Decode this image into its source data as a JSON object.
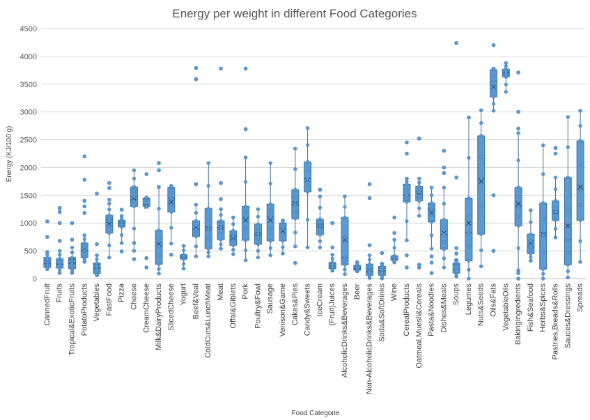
{
  "chart_data": {
    "type": "box",
    "title": "Energy per weight in different Food Categories",
    "xlabel": "Food Categorie",
    "ylabel": "Energy (KJ/100 g)",
    "ylim": [
      0,
      4500
    ],
    "yticks": [
      0,
      500,
      1000,
      1500,
      2000,
      2500,
      3000,
      3500,
      4000,
      4500
    ],
    "grid": true,
    "color": "#5B9BD5",
    "stroke": "#41719C",
    "categories": [
      "CannedFruit",
      "Fruits",
      "Tropical&ExoticFruits",
      "PotatoProducts",
      "Vegetables",
      "FastFood",
      "Pizza",
      "Cheese",
      "CreamCheese",
      "Milk&DairyProducts",
      "SlicedCheese",
      "Yogurt",
      "Beef&Veal",
      "ColdCuts&LunchMeat",
      "Meat",
      "Offal&Giblets",
      "Pork",
      "Poultry&Fowl",
      "Sausage",
      "Venison&Game",
      "Cakes&Pies",
      "Candy&Sweets",
      "IceCream",
      "(Fruit)Juices",
      "AlcoholicDrinks&Beverages",
      "Beer",
      "Non-AlcoholicDrinks&Beverages",
      "Soda&SoftDrinks",
      "Wine",
      "CerealProducts",
      "Oatmeal,Muesli&Cereals",
      "Pasta&Noodles",
      "Dishes&Meals",
      "Soups",
      "Legumes",
      "Nuts&Seeds",
      "Oils&Fats",
      "VegetableOils",
      "BakingIngredients",
      "Fish&Seafood",
      "Herbs&Spices",
      "Pastries,Breads&Rolls",
      "Sauces&Dressings",
      "Spreads"
    ],
    "boxes": [
      {
        "min": 170,
        "q1": 200,
        "median": 280,
        "q3": 380,
        "max": 480,
        "mean": 300,
        "outliers": [
          750,
          1030
        ]
      },
      {
        "min": 100,
        "q1": 190,
        "median": 260,
        "q3": 360,
        "max": 500,
        "mean": 290,
        "outliers": [
          680,
          1000,
          1200,
          1270
        ]
      },
      {
        "min": 100,
        "q1": 180,
        "median": 270,
        "q3": 380,
        "max": 560,
        "mean": 320,
        "outliers": [
          700,
          1000
        ]
      },
      {
        "min": 300,
        "q1": 380,
        "median": 500,
        "q3": 640,
        "max": 780,
        "mean": 540,
        "outliers": [
          1180,
          1300,
          1400,
          1780,
          2200
        ]
      },
      {
        "min": 60,
        "q1": 90,
        "median": 180,
        "q3": 280,
        "max": 420,
        "mean": 230,
        "outliers": [
          620,
          1530
        ]
      },
      {
        "min": 380,
        "q1": 820,
        "median": 1060,
        "q3": 1140,
        "max": 1350,
        "mean": 980,
        "outliers": [
          1420,
          1630,
          1720
        ]
      },
      {
        "min": 640,
        "q1": 930,
        "median": 1000,
        "q3": 1050,
        "max": 1130,
        "mean": 990,
        "outliers": [
          490,
          1240
        ]
      },
      {
        "min": 500,
        "q1": 1300,
        "median": 1480,
        "q3": 1650,
        "max": 1950,
        "mean": 1450,
        "outliers": [
          350,
          640
        ]
      },
      {
        "min": 1290,
        "q1": 1300,
        "median": 1440,
        "q3": 1450,
        "max": 1460,
        "mean": 1300,
        "outliers": [
          200,
          370,
          1880
        ]
      },
      {
        "min": 90,
        "q1": 260,
        "median": 580,
        "q3": 870,
        "max": 1650,
        "mean": 620,
        "outliers": [
          1950,
          2080
        ]
      },
      {
        "min": 630,
        "q1": 1200,
        "median": 1450,
        "q3": 1640,
        "max": 1670,
        "mean": 1380,
        "outliers": [
          430
        ]
      },
      {
        "min": 180,
        "q1": 350,
        "median": 390,
        "q3": 430,
        "max": 590,
        "mean": 400,
        "outliers": []
      },
      {
        "min": 400,
        "q1": 760,
        "median": 880,
        "q3": 1040,
        "max": 1330,
        "mean": 930,
        "outliers": [
          1700,
          3590,
          3790
        ]
      },
      {
        "min": 400,
        "q1": 540,
        "median": 900,
        "q3": 1260,
        "max": 2080,
        "mean": 900,
        "outliers": []
      },
      {
        "min": 540,
        "q1": 700,
        "median": 920,
        "q3": 1040,
        "max": 1250,
        "mean": 920,
        "outliers": [
          1430,
          1720,
          3780
        ]
      },
      {
        "min": 440,
        "q1": 600,
        "median": 760,
        "q3": 860,
        "max": 1100,
        "mean": 740,
        "outliers": []
      },
      {
        "min": 330,
        "q1": 690,
        "median": 1100,
        "q3": 1300,
        "max": 2180,
        "mean": 1050,
        "outliers": [
          2690,
          3780
        ]
      },
      {
        "min": 380,
        "q1": 620,
        "median": 800,
        "q3": 980,
        "max": 1250,
        "mean": 800,
        "outliers": []
      },
      {
        "min": 420,
        "q1": 680,
        "median": 1120,
        "q3": 1340,
        "max": 2080,
        "mean": 1050,
        "outliers": []
      },
      {
        "min": 450,
        "q1": 680,
        "median": 900,
        "q3": 1000,
        "max": 1050,
        "mean": 860,
        "outliers": []
      },
      {
        "min": 580,
        "q1": 1080,
        "median": 1330,
        "q3": 1600,
        "max": 2340,
        "mean": 1350,
        "outliers": [
          280
        ]
      },
      {
        "min": 560,
        "q1": 1560,
        "median": 1800,
        "q3": 2100,
        "max": 2710,
        "mean": 1780,
        "outliers": []
      },
      {
        "min": 560,
        "q1": 790,
        "median": 950,
        "q3": 1070,
        "max": 1480,
        "mean": 950,
        "outliers": [
          1600
        ]
      },
      {
        "min": 140,
        "q1": 180,
        "median": 230,
        "q3": 290,
        "max": 430,
        "mean": 240,
        "outliers": [
          560,
          1000
        ]
      },
      {
        "min": 80,
        "q1": 250,
        "median": 380,
        "q3": 1100,
        "max": 1480,
        "mean": 700,
        "outliers": []
      },
      {
        "min": 130,
        "q1": 150,
        "median": 180,
        "q3": 240,
        "max": 300,
        "mean": 190,
        "outliers": []
      },
      {
        "min": 10,
        "q1": 60,
        "median": 130,
        "q3": 260,
        "max": 420,
        "mean": 150,
        "outliers": [
          600,
          1450,
          1700
        ]
      },
      {
        "min": 0,
        "q1": 60,
        "median": 140,
        "q3": 220,
        "max": 270,
        "mean": 150,
        "outliers": [
          460
        ]
      },
      {
        "min": 290,
        "q1": 330,
        "median": 350,
        "q3": 410,
        "max": 700,
        "mean": 380,
        "outliers": [
          820,
          1100
        ]
      },
      {
        "min": 690,
        "q1": 1380,
        "median": 1500,
        "q3": 1700,
        "max": 1800,
        "mean": 1470,
        "outliers": [
          200,
          420,
          2250,
          2450
        ]
      },
      {
        "min": 1130,
        "q1": 1400,
        "median": 1560,
        "q3": 1660,
        "max": 1800,
        "mean": 1500,
        "outliers": [
          200,
          250,
          2520
        ]
      },
      {
        "min": 540,
        "q1": 1020,
        "median": 1250,
        "q3": 1360,
        "max": 1640,
        "mean": 1180,
        "outliers": [
          100,
          290,
          400
        ]
      },
      {
        "min": 200,
        "q1": 530,
        "median": 790,
        "q3": 1060,
        "max": 1640,
        "mean": 820,
        "outliers": [
          1900,
          2000,
          2300
        ]
      },
      {
        "min": 40,
        "q1": 100,
        "median": 170,
        "q3": 280,
        "max": 340,
        "mean": 290,
        "outliers": [
          450,
          550,
          1820,
          4240
        ]
      },
      {
        "min": 0,
        "q1": 320,
        "median": 830,
        "q3": 1450,
        "max": 2900,
        "mean": 1000,
        "outliers": []
      },
      {
        "min": 220,
        "q1": 800,
        "median": 1800,
        "q3": 2570,
        "max": 3030,
        "mean": 1750,
        "outliers": []
      },
      {
        "min": 3020,
        "q1": 3270,
        "median": 3540,
        "q3": 3760,
        "max": 3780,
        "mean": 3450,
        "outliers": [
          500,
          1500,
          4200
        ]
      },
      {
        "min": 3360,
        "q1": 3630,
        "median": 3700,
        "q3": 3770,
        "max": 3880,
        "mean": 3690,
        "outliers": []
      },
      {
        "min": 150,
        "q1": 950,
        "median": 1300,
        "q3": 1640,
        "max": 2620,
        "mean": 1350,
        "outliers": [
          0,
          100,
          2700,
          3000,
          3710
        ]
      },
      {
        "min": 320,
        "q1": 450,
        "median": 570,
        "q3": 800,
        "max": 1230,
        "mean": 650,
        "outliers": []
      },
      {
        "min": 0,
        "q1": 170,
        "median": 780,
        "q3": 1360,
        "max": 2400,
        "mean": 800,
        "outliers": []
      },
      {
        "min": 740,
        "q1": 1050,
        "median": 1200,
        "q3": 1400,
        "max": 1820,
        "mean": 1200,
        "outliers": [
          2250,
          2350
        ]
      },
      {
        "min": 20,
        "q1": 250,
        "median": 700,
        "q3": 1820,
        "max": 2910,
        "mean": 950,
        "outliers": []
      },
      {
        "min": 300,
        "q1": 1050,
        "median": 1600,
        "q3": 2480,
        "max": 3020,
        "mean": 1650,
        "outliers": []
      }
    ]
  }
}
